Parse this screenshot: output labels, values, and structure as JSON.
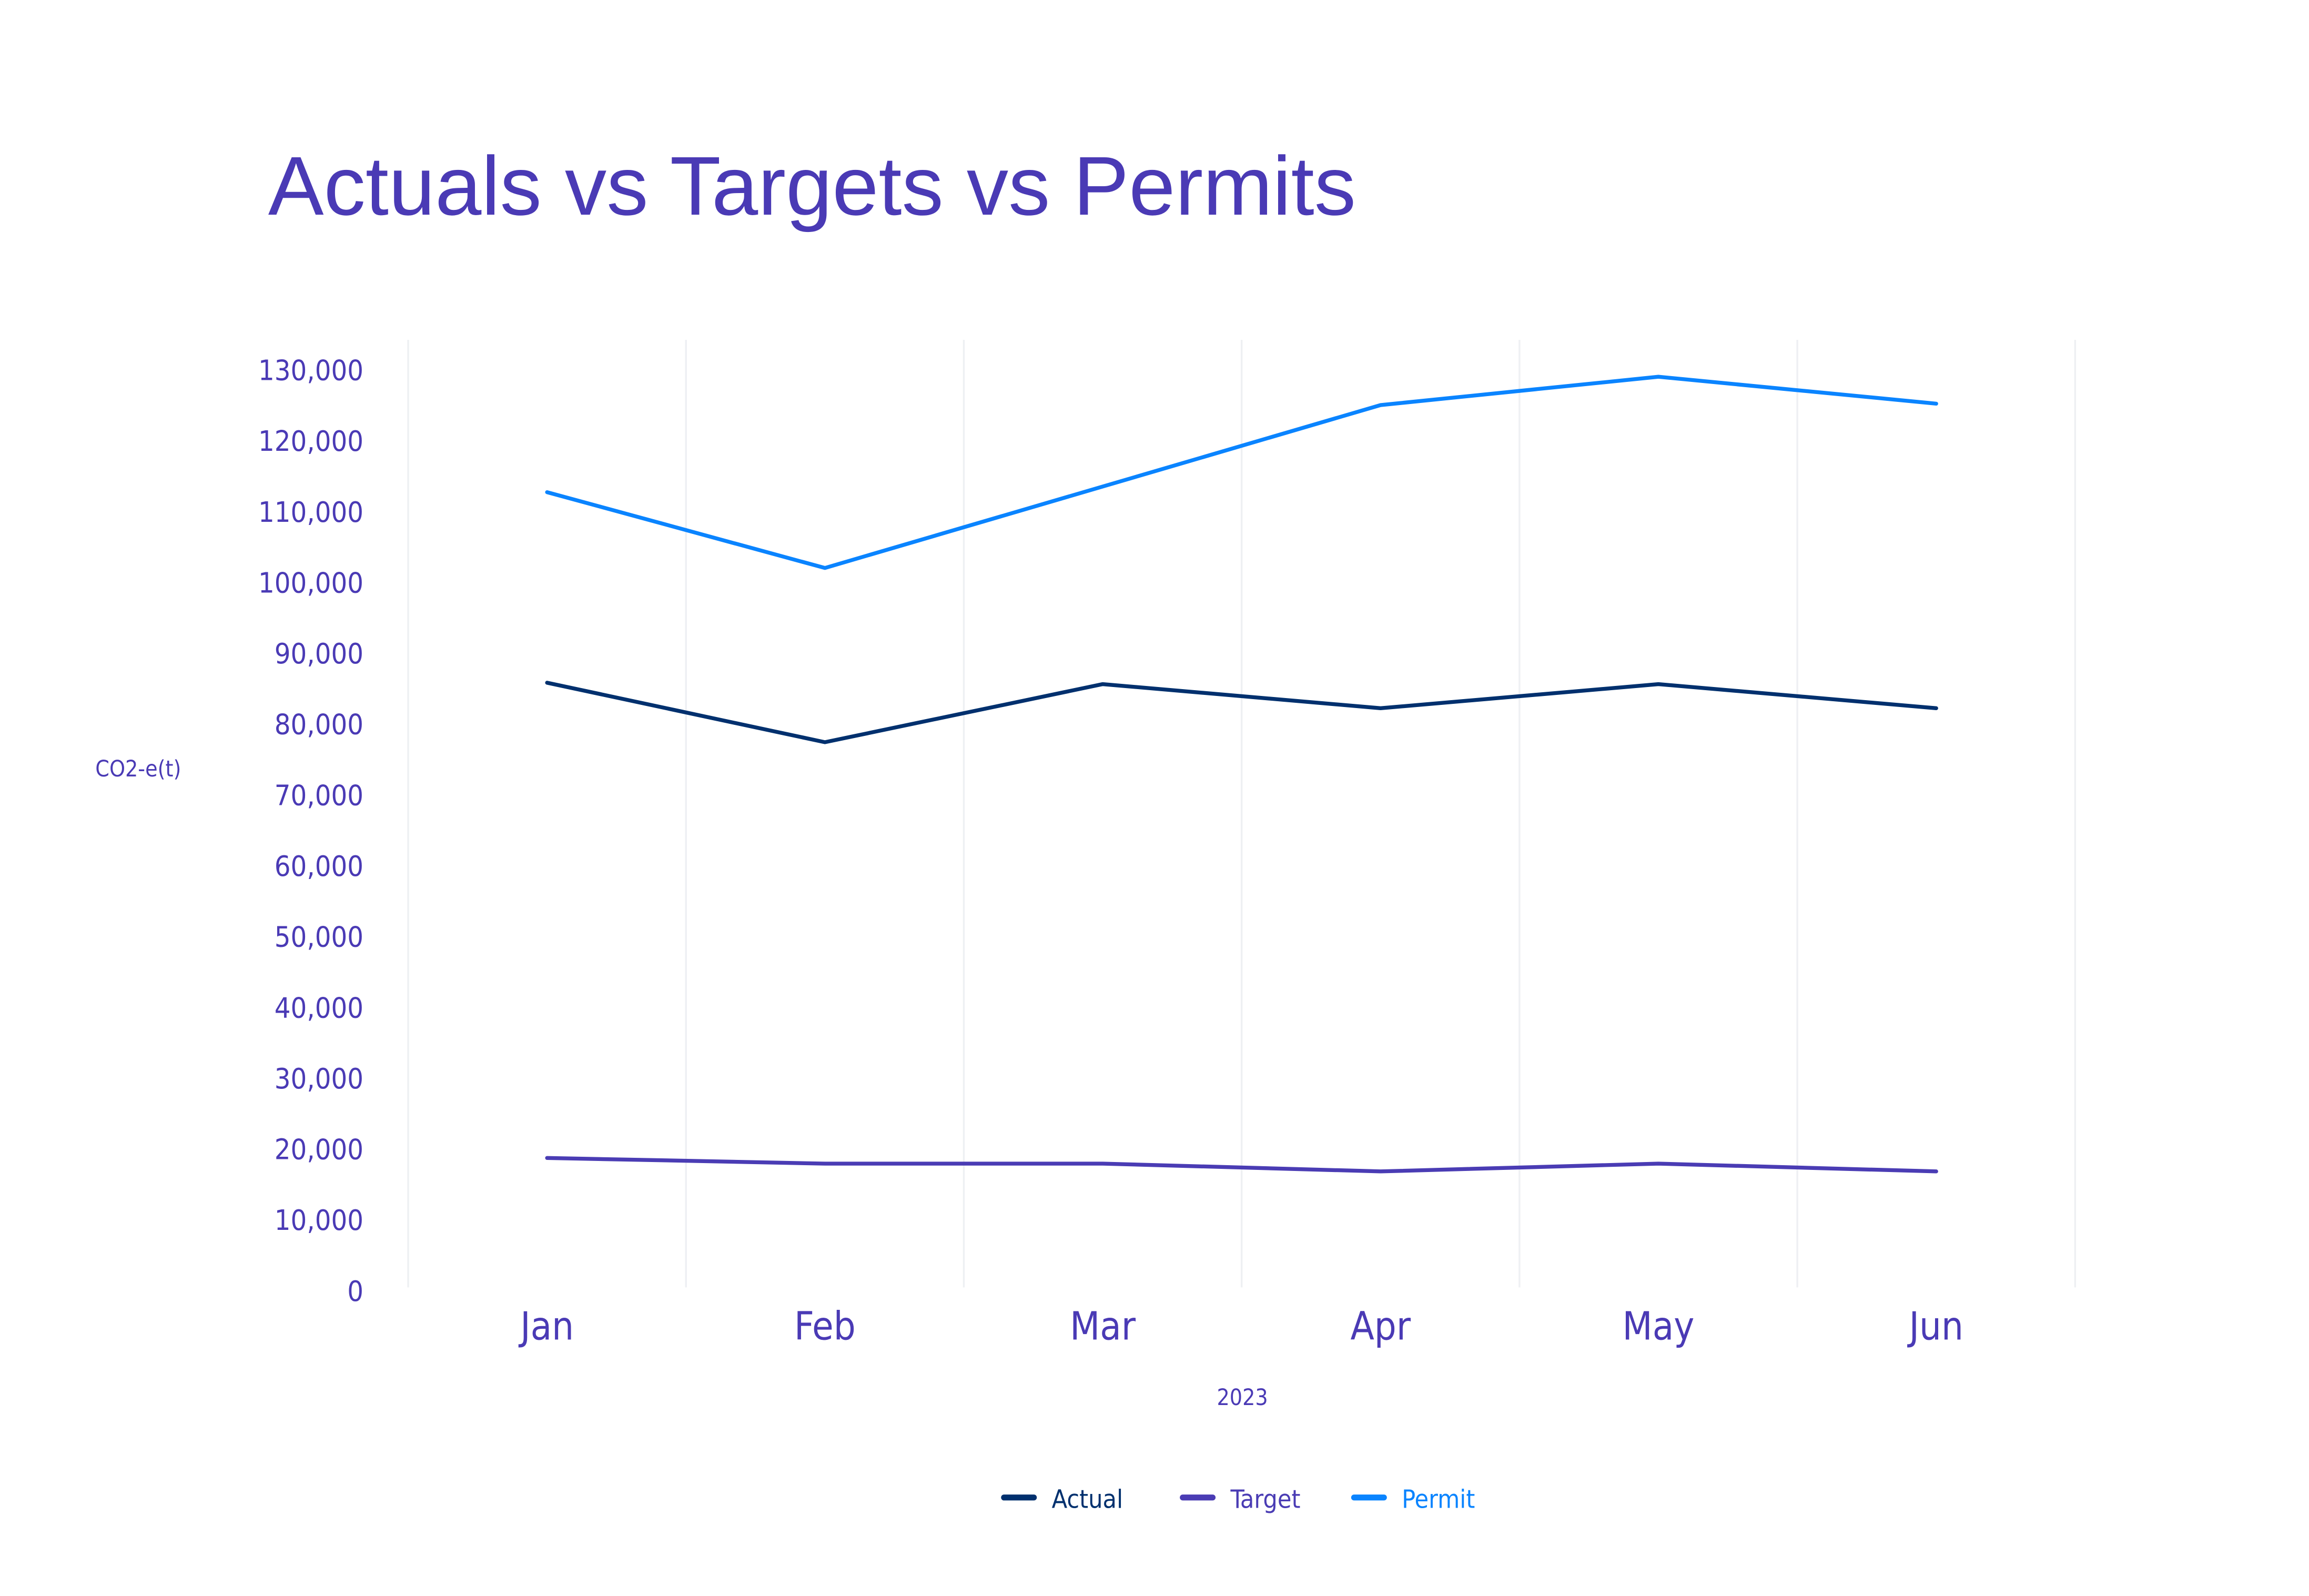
{
  "chart_data": {
    "type": "line",
    "title": "Actuals vs Targets vs Permits",
    "xlabel": "2023",
    "ylabel": "CO2-e(t)",
    "categories": [
      "Jan",
      "Feb",
      "Mar",
      "Apr",
      "May",
      "Jun"
    ],
    "ylim": [
      0,
      130000
    ],
    "yticks": [
      0,
      10000,
      20000,
      30000,
      40000,
      50000,
      60000,
      70000,
      80000,
      90000,
      100000,
      110000,
      120000,
      130000
    ],
    "ytick_labels": [
      "0",
      "10,000",
      "20,000",
      "30,000",
      "40,000",
      "50,000",
      "60,000",
      "70,000",
      "80,000",
      "90,000",
      "100,000",
      "110,000",
      "120,000",
      "130,000"
    ],
    "grid": "vertical",
    "legend_position": "bottom-center",
    "series": [
      {
        "name": "Actual",
        "color": "#00306e",
        "values": [
          85800,
          77400,
          85600,
          82200,
          85600,
          82200
        ]
      },
      {
        "name": "Target",
        "color": "#4a3cb4",
        "values": [
          18700,
          17900,
          17900,
          16800,
          17900,
          16800
        ]
      },
      {
        "name": "Permit",
        "color": "#0a84ff",
        "values": [
          112700,
          102000,
          113500,
          125000,
          129000,
          125200
        ]
      }
    ]
  }
}
